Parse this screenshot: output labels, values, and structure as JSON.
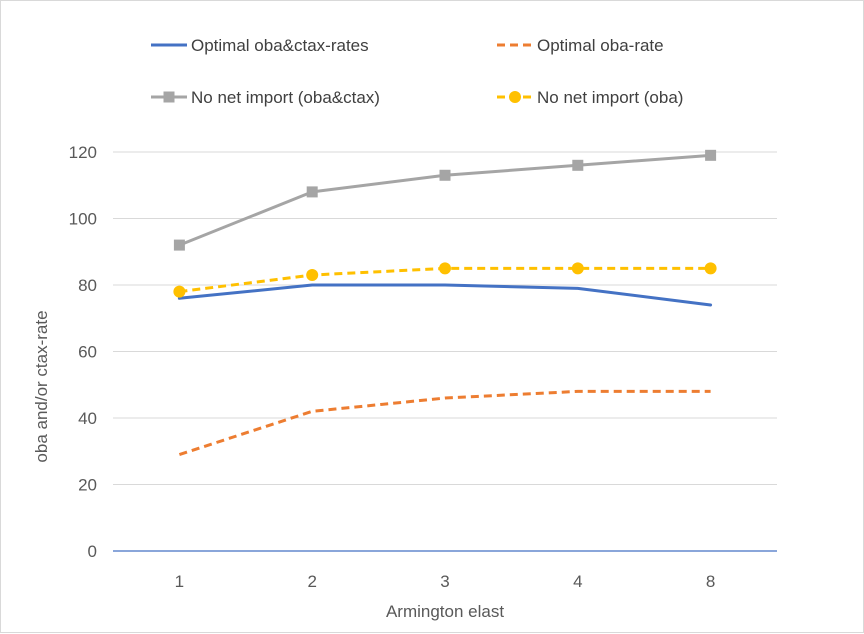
{
  "chart_data": {
    "type": "line",
    "title": "",
    "xlabel": "Armington elast",
    "ylabel": "oba and/or ctax-rate",
    "categories": [
      "1",
      "2",
      "3",
      "4",
      "8"
    ],
    "ylim": [
      0,
      120
    ],
    "yticks": [
      0,
      20,
      40,
      60,
      80,
      100,
      120
    ],
    "grid": true,
    "legend_position": "top",
    "series": [
      {
        "name": "Optimal oba&ctax-rates",
        "values": [
          76,
          80,
          80,
          79,
          74
        ],
        "color": "#4472c4",
        "dash": "solid",
        "marker": "none"
      },
      {
        "name": "Optimal oba-rate",
        "values": [
          29,
          42,
          46,
          48,
          48
        ],
        "color": "#ed7d31",
        "dash": "dashed",
        "marker": "none"
      },
      {
        "name": "No net import (oba&ctax)",
        "values": [
          92,
          108,
          113,
          116,
          119
        ],
        "color": "#a5a5a5",
        "dash": "solid",
        "marker": "square"
      },
      {
        "name": "No net import (oba)",
        "values": [
          78,
          83,
          85,
          85,
          85
        ],
        "color": "#ffc000",
        "dash": "dashed",
        "marker": "circle"
      }
    ]
  }
}
